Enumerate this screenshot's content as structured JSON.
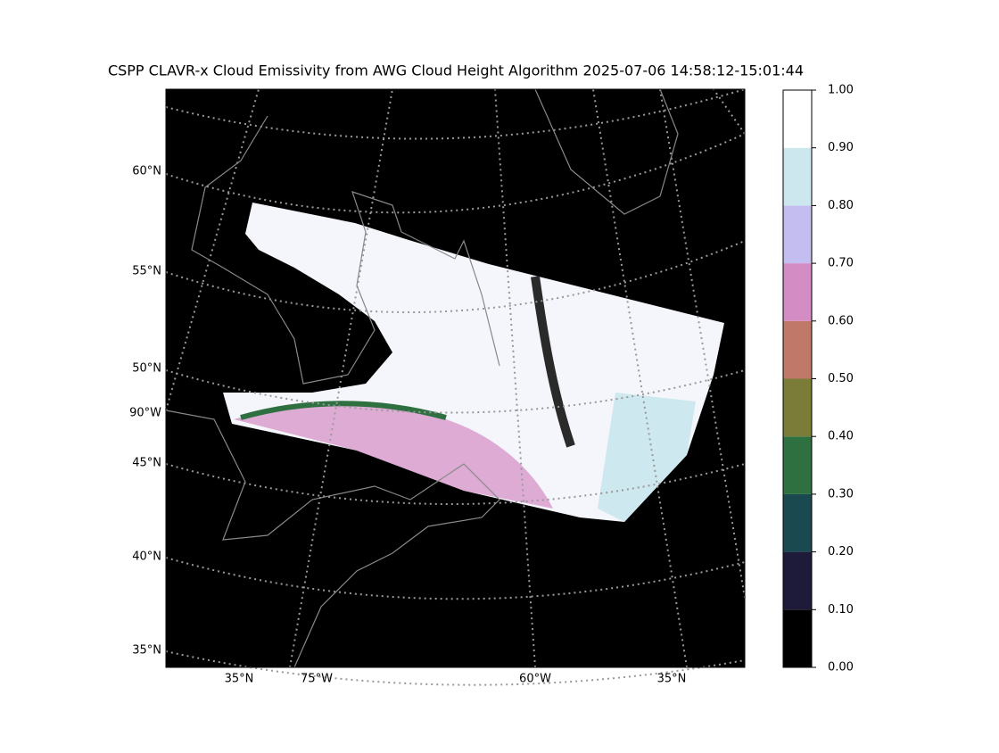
{
  "title": "CSPP CLAVR-x Cloud Emissivity from AWG Cloud Height Algorithm 2025-07-06 14:58:12-15:01:44",
  "map": {
    "left_labels": [
      "60°N",
      "55°N",
      "50°N",
      "90°W",
      "45°N",
      "40°N",
      "35°N"
    ],
    "bottom_labels": [
      "35°N",
      "75°W",
      "60°W",
      "35°N"
    ]
  },
  "colorbar": {
    "ticks": [
      {
        "value": 0,
        "label": "0.00"
      },
      {
        "value": 0.1,
        "label": "0.10"
      },
      {
        "value": 0.2,
        "label": "0.20"
      },
      {
        "value": 0.3,
        "label": "0.30"
      },
      {
        "value": 0.4,
        "label": "0.40"
      },
      {
        "value": 0.5,
        "label": "0.50"
      },
      {
        "value": 0.6,
        "label": "0.60"
      },
      {
        "value": 0.7,
        "label": "0.70"
      },
      {
        "value": 0.8,
        "label": "0.80"
      },
      {
        "value": 0.9,
        "label": "0.90"
      },
      {
        "value": 1,
        "label": "1.00"
      }
    ],
    "colors": [
      "#000000",
      "#1e1a3a",
      "#1a4a50",
      "#2e7040",
      "#7a7c38",
      "#c07868",
      "#d48cc4",
      "#c4bef0",
      "#cce8ee",
      "#ffffff"
    ]
  }
}
